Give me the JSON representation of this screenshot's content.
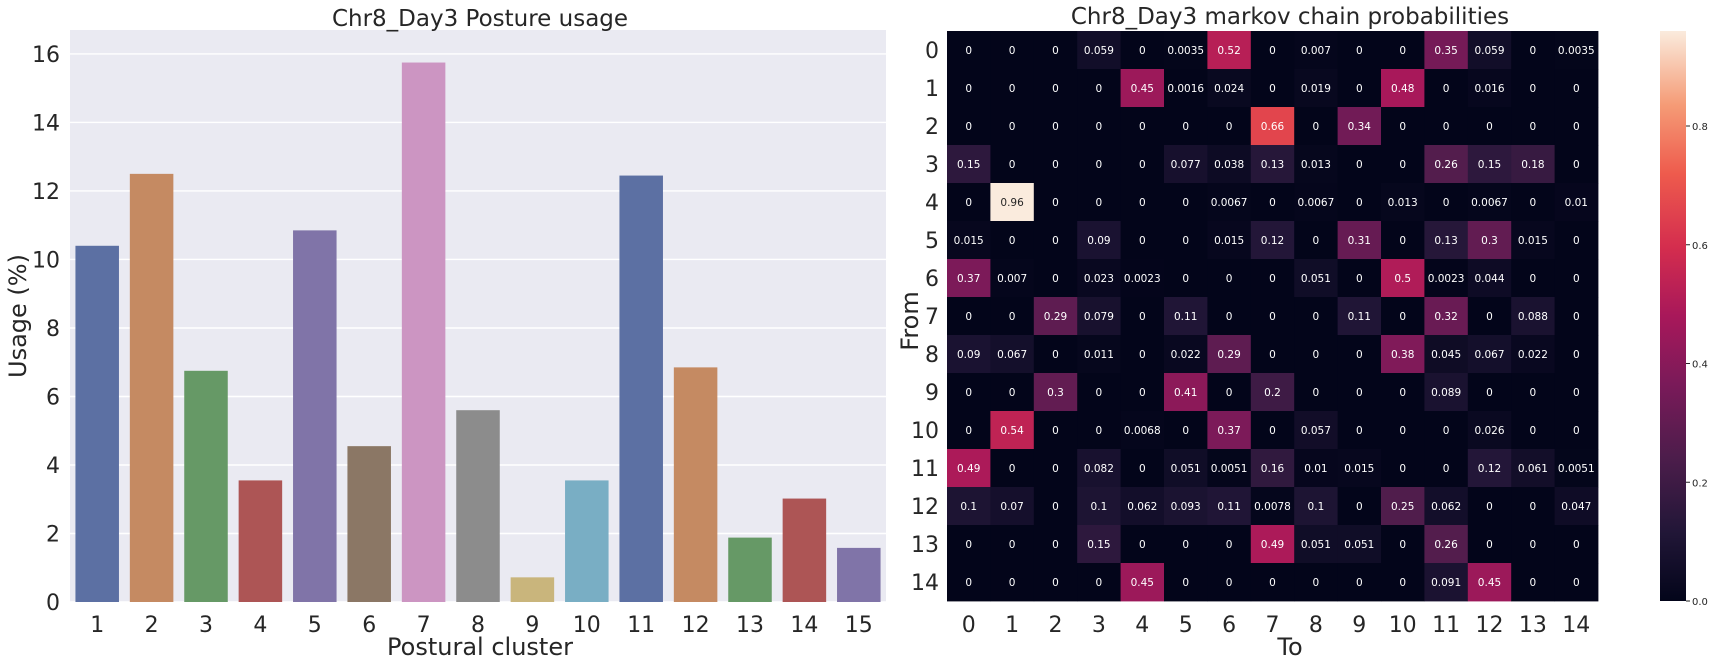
{
  "chart_data": [
    {
      "type": "bar",
      "title": "Chr8_Day3 Posture usage",
      "xlabel": "Postural cluster",
      "ylabel": "Usage (%)",
      "ylim": [
        0,
        16.7
      ],
      "yticks": [
        0,
        2,
        4,
        6,
        8,
        10,
        12,
        14,
        16
      ],
      "grid": true,
      "categories": [
        "1",
        "2",
        "3",
        "4",
        "5",
        "6",
        "7",
        "8",
        "9",
        "10",
        "11",
        "12",
        "13",
        "14",
        "15"
      ],
      "values": [
        10.4,
        12.5,
        6.75,
        3.55,
        10.85,
        4.55,
        15.75,
        5.6,
        0.72,
        3.55,
        12.45,
        6.85,
        1.88,
        3.02,
        1.58
      ],
      "colors": [
        "#5c70a3",
        "#c58a62",
        "#669966",
        "#ad5555",
        "#8074a8",
        "#8b7765",
        "#cc95c2",
        "#8c8c8c",
        "#c9b57c",
        "#79aec4",
        "#5c70a3",
        "#c58a62",
        "#669966",
        "#ad5555",
        "#8074a8"
      ]
    },
    {
      "type": "heatmap",
      "title": "Chr8_Day3 markov chain probabilities",
      "xlabel": "To",
      "ylabel": "From",
      "x_categories": [
        "0",
        "1",
        "2",
        "3",
        "4",
        "5",
        "6",
        "7",
        "8",
        "9",
        "10",
        "11",
        "12",
        "13",
        "14"
      ],
      "y_categories": [
        "0",
        "1",
        "2",
        "3",
        "4",
        "5",
        "6",
        "7",
        "8",
        "9",
        "10",
        "11",
        "12",
        "13",
        "14"
      ],
      "colorbar_ticks": [
        "0.0",
        "0.2",
        "0.4",
        "0.6",
        "0.8"
      ],
      "colorbar_range": [
        0,
        0.96
      ],
      "colormap": "rocket",
      "values": [
        [
          0,
          0,
          0,
          0.059,
          0,
          0.0035,
          0.52,
          0,
          0.007,
          0,
          0,
          0.35,
          0.059,
          0,
          0.0035
        ],
        [
          0,
          0,
          0,
          0,
          0.45,
          0.0016,
          0.024,
          0,
          0.019,
          0,
          0.48,
          0,
          0.016,
          0,
          0
        ],
        [
          0,
          0,
          0,
          0,
          0,
          0,
          0,
          0.66,
          0,
          0.34,
          0,
          0,
          0,
          0,
          0
        ],
        [
          0.15,
          0,
          0,
          0,
          0,
          0.077,
          0.038,
          0.13,
          0.013,
          0,
          0,
          0.26,
          0.15,
          0.18,
          0
        ],
        [
          0,
          0.96,
          0,
          0,
          0,
          0,
          0.0067,
          0,
          0.0067,
          0,
          0.013,
          0,
          0.0067,
          0,
          0.01
        ],
        [
          0.015,
          0,
          0,
          0.09,
          0,
          0,
          0.015,
          0.12,
          0,
          0.31,
          0,
          0.13,
          0.3,
          0.015,
          0
        ],
        [
          0.37,
          0.007,
          0,
          0.023,
          0.0023,
          0,
          0,
          0,
          0.051,
          0,
          0.5,
          0.0023,
          0.044,
          0,
          0
        ],
        [
          0,
          0,
          0.29,
          0.079,
          0,
          0.11,
          0,
          0,
          0,
          0.11,
          0,
          0.32,
          0,
          0.088,
          0
        ],
        [
          0.09,
          0.067,
          0,
          0.011,
          0,
          0.022,
          0.29,
          0,
          0,
          0,
          0.38,
          0.045,
          0.067,
          0.022,
          0
        ],
        [
          0,
          0,
          0.3,
          0,
          0,
          0.41,
          0,
          0.2,
          0,
          0,
          0,
          0.089,
          0,
          0,
          0
        ],
        [
          0,
          0.54,
          0,
          0,
          0.0068,
          0,
          0.37,
          0,
          0.057,
          0,
          0,
          0,
          0.026,
          0,
          0
        ],
        [
          0.49,
          0,
          0,
          0.082,
          0,
          0.051,
          0.0051,
          0.16,
          0.01,
          0.015,
          0,
          0,
          0.12,
          0.061,
          0.0051
        ],
        [
          0.1,
          0.07,
          0,
          0.1,
          0.062,
          0.093,
          0.11,
          0.0078,
          0.1,
          0,
          0.25,
          0.062,
          0,
          0,
          0.047
        ],
        [
          0,
          0,
          0,
          0.15,
          0,
          0,
          0,
          0.49,
          0.051,
          0.051,
          0,
          0.26,
          0,
          0,
          0
        ],
        [
          0,
          0,
          0,
          0,
          0.45,
          0,
          0,
          0,
          0,
          0,
          0,
          0.091,
          0.45,
          0,
          0
        ]
      ]
    }
  ]
}
